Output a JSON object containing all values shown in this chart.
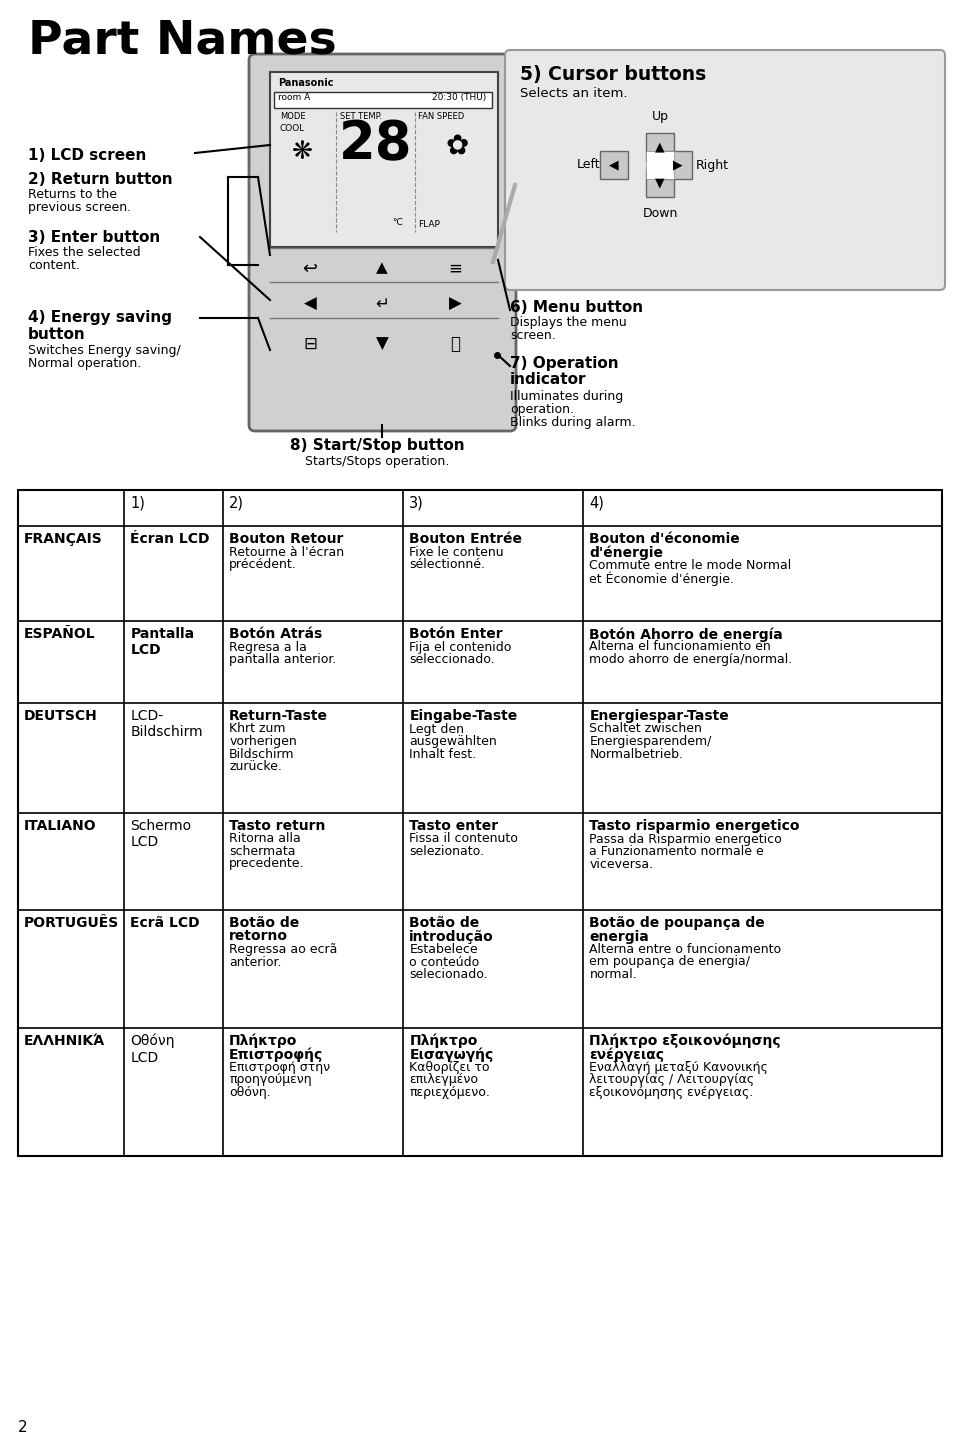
{
  "title": "Part Names",
  "bg_color": "#ffffff",
  "title_fontsize": 32,
  "table_rows": [
    {
      "lang": "FRANÇAIS",
      "c1": "Écran LCD",
      "c1_bold": true,
      "c2_head": "Bouton Retour",
      "c2_sub": "Retourne à l'écran\nprécédent.",
      "c3_head": "Bouton Entrée",
      "c3_sub": "Fixe le contenu\nsélectionné.",
      "c4_head": "Bouton d'économie\nd'énergie",
      "c4_sub": "Commute entre le mode Normal\net Économie d'énergie."
    },
    {
      "lang": "ESPAÑOL",
      "c1": "Pantalla\nLCD",
      "c1_bold": true,
      "c2_head": "Botón Atrás",
      "c2_sub": "Regresa a la\npantalla anterior.",
      "c3_head": "Botón Enter",
      "c3_sub": "Fija el contenido\nseleccionado.",
      "c4_head": "Botón Ahorro de energía",
      "c4_sub": "Alterna el funcionamiento en\nmodo ahorro de energía/normal."
    },
    {
      "lang": "DEUTSCH",
      "c1": "LCD-\nBildschirm",
      "c1_bold": false,
      "c2_head": "Return-Taste",
      "c2_sub": "Khrt zum\nvorherigen\nBildschirm\nzurücke.",
      "c3_head": "Eingabe-Taste",
      "c3_sub": "Legt den\nausgewählten\nInhalt fest.",
      "c4_head": "Energiespar-Taste",
      "c4_sub": "Schaltet zwischen\nEnergiesparendem/\nNormalbetrieb."
    },
    {
      "lang": "ITALIANO",
      "c1": "Schermo\nLCD",
      "c1_bold": false,
      "c2_head": "Tasto return",
      "c2_sub": "Ritorna alla\nschermata\nprecedente.",
      "c3_head": "Tasto enter",
      "c3_sub": "Fissa il contenuto\nselezionato.",
      "c4_head": "Tasto risparmio energetico",
      "c4_sub": "Passa da Risparmio energetico\na Funzionamento normale e\nviceversa."
    },
    {
      "lang": "PORTUGUÊS",
      "c1": "Ecrã LCD",
      "c1_bold": true,
      "c2_head": "Botão de\nretorno",
      "c2_sub": "Regressa ao ecrã\nanterior.",
      "c3_head": "Botão de\nintrodução",
      "c3_sub": "Estabelece\no conteúdo\nselecionado.",
      "c4_head": "Botão de poupança de\nenergia",
      "c4_sub": "Alterna entre o funcionamento\nem poupança de energia/\nnormal."
    },
    {
      "lang": "ΕΛΛΗΝΙΚΆ",
      "c1": "Οθόνη\nLCD",
      "c1_bold": false,
      "c2_head": "Πλήκτρο\nΕπιστροφής",
      "c2_sub": "Επιστροφή στην\nπροηγούμενη\nοθόνη.",
      "c3_head": "Πλήκτρο\nΕισαγωγής",
      "c3_sub": "Καθορίζει το\nεπιλεγμένο\nπεριεχόμενο.",
      "c4_head": "Πλήκτρο εξοικονόμησης\nενέργειας",
      "c4_sub": "Εναλλαγή μεταξύ Κανονικής\nλειτουργίας / Λειτουργίας\nεξοικονόμησης ενέργειας."
    }
  ],
  "page_num": "2"
}
